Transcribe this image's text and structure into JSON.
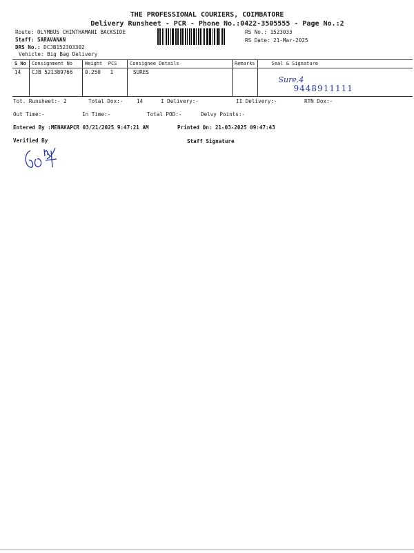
{
  "header": {
    "title": "THE PROFESSIONAL COURIERS, COIMBATORE",
    "subtitle": "Delivery Runsheet - PCR - Phone No.:0422-3505555 - Page No.:2",
    "route": "Route: OLYMBUS CHINTHAMANI BACKSIDE",
    "staff_label": "Staff:",
    "staff": "SARAVANAN",
    "drs_label": "DRS No.:",
    "drs": "DCJB152303302",
    "vehicle": "Vehicle: Big Bag Delivery",
    "rs_no": "RS No.: 1523033",
    "rs_date": "RS Date: 21-Mar-2025"
  },
  "table": {
    "columns": [
      "S No",
      "Consignment No",
      "Weight",
      "PCS",
      "Consignee Details",
      "Remarks",
      "Seal & Signature"
    ],
    "rows": [
      {
        "sno": "14",
        "consignment": "CJB 521389766",
        "weight": "0.250",
        "pcs": "1",
        "consignee": "SURES",
        "remarks": "",
        "handwritten_name": "Sure.4",
        "handwritten_phone": "9448911111"
      }
    ]
  },
  "totals": {
    "runsheet": "Tot. Runsheet:- 2",
    "total_dox": "Total Dox:-",
    "total_dox_value": "14",
    "i_delivery": "I Delivery:-",
    "ii_delivery": "II Delivery:-",
    "rtn_dox": "RTN Dox:-",
    "out_time": "Out Time:-",
    "in_time": "In Time:-",
    "total_pod": "Total POD:-",
    "delvy_points": "Delvy Points:-"
  },
  "footer": {
    "entered_by": "Entered By :MENAKAPCR 03/21/2025 9:47:21 AM",
    "printed_on": "Printed On: 21-03-2025 09:47:43",
    "verified_by": "Verified By",
    "staff_signature": "Staff Signature",
    "verifier_signature": "CM"
  },
  "colors": {
    "ink": "#1a1a1a",
    "pen": "#2233aa"
  }
}
